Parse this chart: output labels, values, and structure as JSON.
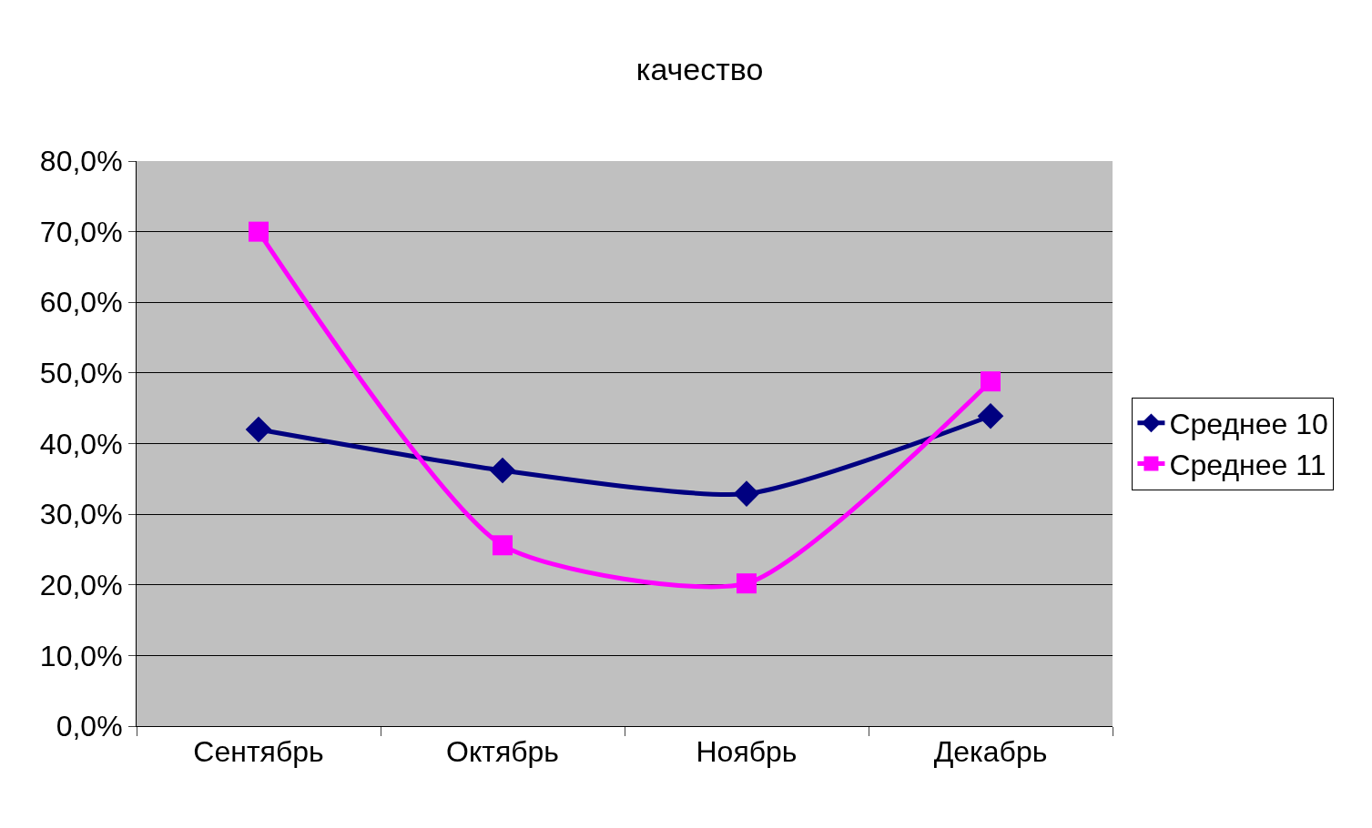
{
  "chart_data": {
    "type": "line",
    "title": "качество",
    "categories": [
      "Сентябрь",
      "Октябрь",
      "Ноябрь",
      "Декабрь"
    ],
    "series": [
      {
        "name": "Среднее 10",
        "color": "#000080",
        "marker": "diamond",
        "values": [
          42.0,
          36.2,
          32.9,
          43.9
        ]
      },
      {
        "name": "Среднее 11",
        "color": "#ff00ff",
        "marker": "square",
        "values": [
          70.0,
          25.6,
          20.2,
          48.8
        ]
      }
    ],
    "ylim": [
      0,
      80
    ],
    "yticks": [
      {
        "value": 0,
        "label": "0,0%"
      },
      {
        "value": 10,
        "label": "10,0%"
      },
      {
        "value": 20,
        "label": "20,0%"
      },
      {
        "value": 30,
        "label": "30,0%"
      },
      {
        "value": 40,
        "label": "40,0%"
      },
      {
        "value": 50,
        "label": "50,0%"
      },
      {
        "value": 60,
        "label": "60,0%"
      },
      {
        "value": 70,
        "label": "70,0%"
      },
      {
        "value": 80,
        "label": "80,0%"
      }
    ],
    "grid": "y",
    "legend": "right",
    "line_style": "solid"
  }
}
